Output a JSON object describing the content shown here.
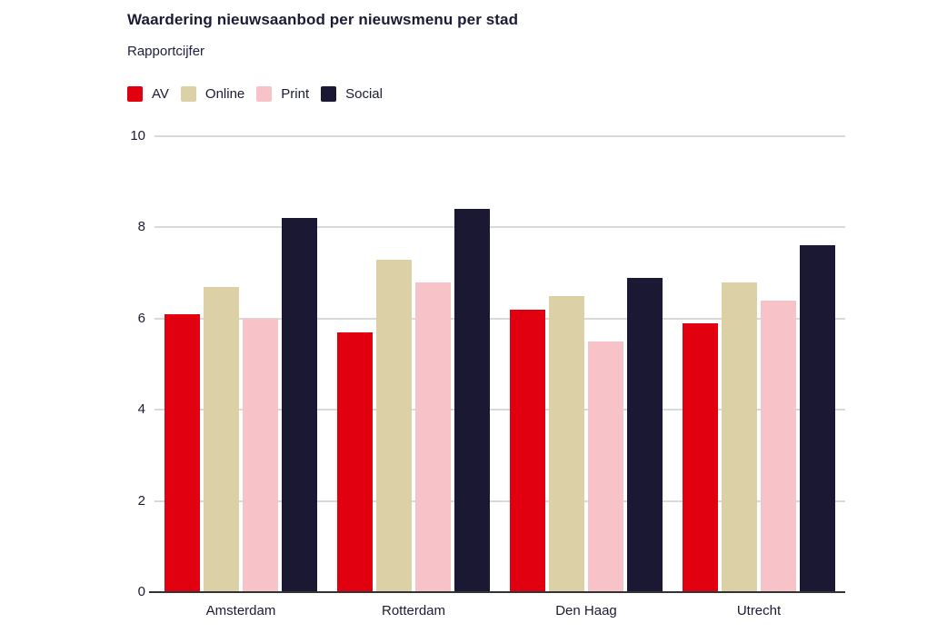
{
  "header": {
    "title": "Waardering nieuwsaanbod per nieuwsmenu per stad",
    "subtitle": "Rapportcijfer"
  },
  "colors": {
    "av": "#e1000f",
    "online": "#dcd0a7",
    "print": "#f7c2c8",
    "social": "#1a1832",
    "text": "#1b1b35",
    "gridline": "#d9d9d9",
    "axis_line": "#333333",
    "background": "#ffffff"
  },
  "chart_data": {
    "type": "bar",
    "title": "Waardering nieuwsaanbod per nieuwsmenu per stad",
    "subtitle": "Rapportcijfer",
    "xlabel": "",
    "ylabel": "",
    "categories": [
      "Amsterdam",
      "Rotterdam",
      "Den Haag",
      "Utrecht"
    ],
    "series": [
      {
        "name": "AV",
        "color": "#e1000f",
        "values": [
          6.1,
          5.7,
          6.2,
          5.9
        ]
      },
      {
        "name": "Online",
        "color": "#dcd0a7",
        "values": [
          6.7,
          7.3,
          6.5,
          6.8
        ]
      },
      {
        "name": "Print",
        "color": "#f7c2c8",
        "values": [
          6.0,
          6.8,
          5.5,
          6.4
        ]
      },
      {
        "name": "Social",
        "color": "#1a1832",
        "values": [
          8.2,
          8.4,
          6.9,
          7.6
        ]
      }
    ],
    "ylim": [
      0,
      10
    ],
    "yticks": [
      0,
      2,
      4,
      6,
      8,
      10
    ],
    "grid": true,
    "legend_position": "top-left"
  }
}
